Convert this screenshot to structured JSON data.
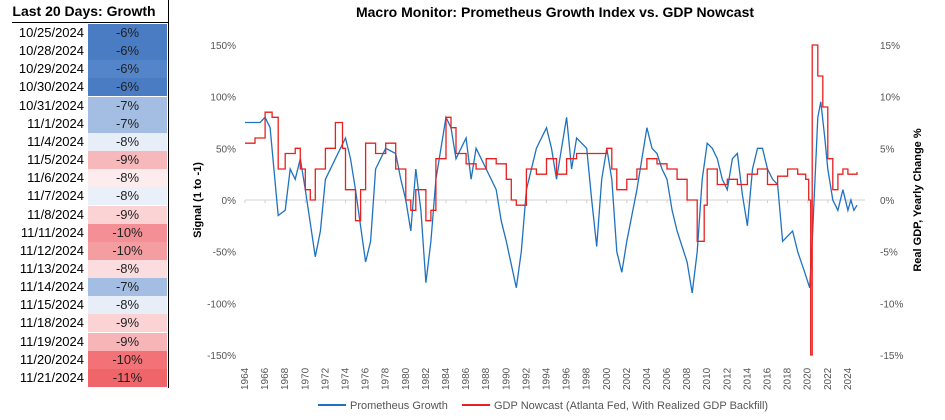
{
  "table": {
    "title": "Last 20 Days: Growth",
    "rows": [
      {
        "date": "10/25/2024",
        "value": "-6%",
        "color": "#4a7cc4"
      },
      {
        "date": "10/28/2024",
        "value": "-6%",
        "color": "#4a7cc4"
      },
      {
        "date": "10/29/2024",
        "value": "-6%",
        "color": "#5585c9"
      },
      {
        "date": "10/30/2024",
        "value": "-6%",
        "color": "#4a7cc4"
      },
      {
        "date": "10/31/2024",
        "value": "-7%",
        "color": "#a3bde3"
      },
      {
        "date": "11/1/2024",
        "value": "-7%",
        "color": "#a3bde3"
      },
      {
        "date": "11/4/2024",
        "value": "-8%",
        "color": "#e8eef8"
      },
      {
        "date": "11/5/2024",
        "value": "-9%",
        "color": "#f7b8bb"
      },
      {
        "date": "11/6/2024",
        "value": "-8%",
        "color": "#fcecee"
      },
      {
        "date": "11/7/2024",
        "value": "-8%",
        "color": "#eaf0f9"
      },
      {
        "date": "11/8/2024",
        "value": "-9%",
        "color": "#fbd3d5"
      },
      {
        "date": "11/11/2024",
        "value": "-10%",
        "color": "#f49095"
      },
      {
        "date": "11/12/2024",
        "value": "-10%",
        "color": "#f49ea2"
      },
      {
        "date": "11/13/2024",
        "value": "-8%",
        "color": "#fbdde0"
      },
      {
        "date": "11/14/2024",
        "value": "-7%",
        "color": "#a3bde3"
      },
      {
        "date": "11/15/2024",
        "value": "-8%",
        "color": "#e8eef8"
      },
      {
        "date": "11/18/2024",
        "value": "-9%",
        "color": "#fbd3d5"
      },
      {
        "date": "11/19/2024",
        "value": "-9%",
        "color": "#f8b5b8"
      },
      {
        "date": "11/20/2024",
        "value": "-10%",
        "color": "#f27277"
      },
      {
        "date": "11/21/2024",
        "value": "-11%",
        "color": "#f0656a"
      }
    ]
  },
  "chart_data": {
    "type": "line",
    "title": "Macro Monitor: Prometheus Growth Index vs. GDP Nowcast",
    "ylabel": "Signal (1 to -1)",
    "ylabel_right": "Real GDP, Yearly Change %",
    "ylim": [
      -150,
      150
    ],
    "ylim_right": [
      -15,
      15
    ],
    "yticks": [
      "150%",
      "100%",
      "50%",
      "0%",
      "-50%",
      "-100%",
      "-150%"
    ],
    "yticks_right": [
      "15%",
      "10%",
      "5%",
      "0%",
      "-5%",
      "-10%",
      "-15%"
    ],
    "xlim": [
      1964,
      2025.7
    ],
    "xticks": [
      "1964",
      "1966",
      "1968",
      "1970",
      "1972",
      "1974",
      "1976",
      "1978",
      "1980",
      "1982",
      "1984",
      "1986",
      "1988",
      "1990",
      "1992",
      "1994",
      "1996",
      "1998",
      "2000",
      "2002",
      "2004",
      "2006",
      "2008",
      "2010",
      "2012",
      "2014",
      "2016",
      "2018",
      "2020",
      "2022",
      "2024"
    ],
    "legend": "bottom",
    "series": [
      {
        "name": "Prometheus Growth",
        "color": "#1f72bf",
        "axis": "left",
        "points": [
          [
            1964,
            75
          ],
          [
            1965.5,
            75
          ],
          [
            1966,
            80
          ],
          [
            1966.5,
            70
          ],
          [
            1967.3,
            -15
          ],
          [
            1968,
            -10
          ],
          [
            1968.5,
            30
          ],
          [
            1969,
            20
          ],
          [
            1969.5,
            40
          ],
          [
            1970,
            10
          ],
          [
            1971,
            -55
          ],
          [
            1971.5,
            -30
          ],
          [
            1972,
            20
          ],
          [
            1973,
            40
          ],
          [
            1974,
            60
          ],
          [
            1974.5,
            40
          ],
          [
            1975,
            10
          ],
          [
            1976,
            -60
          ],
          [
            1976.5,
            -40
          ],
          [
            1977,
            30
          ],
          [
            1978,
            50
          ],
          [
            1979,
            45
          ],
          [
            1979.5,
            20
          ],
          [
            1980,
            0
          ],
          [
            1980.5,
            -30
          ],
          [
            1981,
            30
          ],
          [
            1981.5,
            -10
          ],
          [
            1982,
            -80
          ],
          [
            1982.5,
            -40
          ],
          [
            1983,
            20
          ],
          [
            1984,
            80
          ],
          [
            1984.5,
            70
          ],
          [
            1985,
            40
          ],
          [
            1986,
            60
          ],
          [
            1986.5,
            20
          ],
          [
            1987,
            50
          ],
          [
            1988,
            30
          ],
          [
            1989,
            10
          ],
          [
            1989.5,
            -20
          ],
          [
            1990,
            -40
          ],
          [
            1991,
            -85
          ],
          [
            1991.5,
            -50
          ],
          [
            1992,
            10
          ],
          [
            1993,
            50
          ],
          [
            1994,
            70
          ],
          [
            1994.5,
            50
          ],
          [
            1995,
            20
          ],
          [
            1996,
            80
          ],
          [
            1996.5,
            30
          ],
          [
            1997,
            60
          ],
          [
            1998,
            50
          ],
          [
            1998.5,
            0
          ],
          [
            1999,
            -45
          ],
          [
            1999.5,
            20
          ],
          [
            2000,
            50
          ],
          [
            2000.5,
            20
          ],
          [
            2001,
            -50
          ],
          [
            2001.5,
            -70
          ],
          [
            2002,
            -40
          ],
          [
            2003,
            10
          ],
          [
            2004,
            70
          ],
          [
            2004.5,
            50
          ],
          [
            2005,
            45
          ],
          [
            2005.5,
            30
          ],
          [
            2006,
            20
          ],
          [
            2006.5,
            -10
          ],
          [
            2007,
            -30
          ],
          [
            2008,
            -60
          ],
          [
            2008.5,
            -90
          ],
          [
            2009,
            -50
          ],
          [
            2009.5,
            20
          ],
          [
            2010,
            55
          ],
          [
            2010.5,
            50
          ],
          [
            2011,
            40
          ],
          [
            2011.5,
            20
          ],
          [
            2012,
            10
          ],
          [
            2012.5,
            40
          ],
          [
            2013,
            45
          ],
          [
            2013.5,
            5
          ],
          [
            2014,
            -25
          ],
          [
            2014.5,
            30
          ],
          [
            2015,
            50
          ],
          [
            2015.5,
            50
          ],
          [
            2016,
            30
          ],
          [
            2016.5,
            20
          ],
          [
            2017,
            15
          ],
          [
            2017.5,
            -40
          ],
          [
            2018.5,
            -30
          ],
          [
            2019,
            -50
          ],
          [
            2019.7,
            -70
          ],
          [
            2020.2,
            -85
          ],
          [
            2020.5,
            -30
          ],
          [
            2021,
            80
          ],
          [
            2021.3,
            95
          ],
          [
            2021.7,
            60
          ],
          [
            2022,
            30
          ],
          [
            2022.5,
            0
          ],
          [
            2023,
            -10
          ],
          [
            2023.5,
            10
          ],
          [
            2024,
            -10
          ],
          [
            2024.3,
            0
          ],
          [
            2024.6,
            -10
          ],
          [
            2024.9,
            -5
          ]
        ]
      },
      {
        "name": "GDP Nowcast (Atlanta Fed, With Realized GDP Backfill)",
        "color": "#e8201f",
        "axis": "right",
        "points": [
          [
            1964,
            5.5
          ],
          [
            1965,
            6
          ],
          [
            1966,
            8.5
          ],
          [
            1966.7,
            8
          ],
          [
            1967.3,
            3
          ],
          [
            1968,
            4.5
          ],
          [
            1969,
            5
          ],
          [
            1969.5,
            3
          ],
          [
            1970,
            1
          ],
          [
            1970.5,
            0
          ],
          [
            1971,
            3
          ],
          [
            1972,
            5
          ],
          [
            1973,
            7.5
          ],
          [
            1973.7,
            5
          ],
          [
            1974,
            1
          ],
          [
            1975,
            -2
          ],
          [
            1975.5,
            1
          ],
          [
            1976,
            5.5
          ],
          [
            1977,
            4.5
          ],
          [
            1978,
            5.5
          ],
          [
            1979,
            3
          ],
          [
            1980,
            0
          ],
          [
            1980.5,
            -1
          ],
          [
            1981,
            1
          ],
          [
            1982,
            -2
          ],
          [
            1982.5,
            -1
          ],
          [
            1983,
            4
          ],
          [
            1984,
            8
          ],
          [
            1984.5,
            7
          ],
          [
            1985,
            4.5
          ],
          [
            1986,
            3.5
          ],
          [
            1987,
            3
          ],
          [
            1988,
            4
          ],
          [
            1989,
            3.5
          ],
          [
            1990,
            2
          ],
          [
            1990.5,
            0
          ],
          [
            1991,
            -0.5
          ],
          [
            1992,
            3
          ],
          [
            1993,
            2.5
          ],
          [
            1994,
            4
          ],
          [
            1995,
            2.5
          ],
          [
            1996,
            4
          ],
          [
            1997,
            4.5
          ],
          [
            1998,
            4.5
          ],
          [
            1999,
            4.5
          ],
          [
            2000,
            5
          ],
          [
            2000.5,
            3
          ],
          [
            2001,
            1
          ],
          [
            2002,
            2
          ],
          [
            2003,
            3
          ],
          [
            2004,
            4
          ],
          [
            2005,
            3.5
          ],
          [
            2006,
            3
          ],
          [
            2007,
            2
          ],
          [
            2008,
            0
          ],
          [
            2009,
            -4
          ],
          [
            2009.7,
            -0.5
          ],
          [
            2010,
            3
          ],
          [
            2011,
            1.5
          ],
          [
            2012,
            2
          ],
          [
            2013,
            1.5
          ],
          [
            2014,
            2.5
          ],
          [
            2015,
            3
          ],
          [
            2016,
            1.5
          ],
          [
            2017,
            2.3
          ],
          [
            2018,
            3
          ],
          [
            2019,
            2.5
          ],
          [
            2019.8,
            2
          ],
          [
            2020.1,
            0
          ],
          [
            2020.3,
            -15
          ],
          [
            2020.45,
            15
          ],
          [
            2020.75,
            15
          ],
          [
            2021,
            12
          ],
          [
            2021.5,
            9
          ],
          [
            2022,
            4
          ],
          [
            2022.5,
            1
          ],
          [
            2023,
            2.5
          ],
          [
            2023.5,
            3
          ],
          [
            2024,
            2.5
          ],
          [
            2024.9,
            2.7
          ]
        ]
      }
    ]
  }
}
